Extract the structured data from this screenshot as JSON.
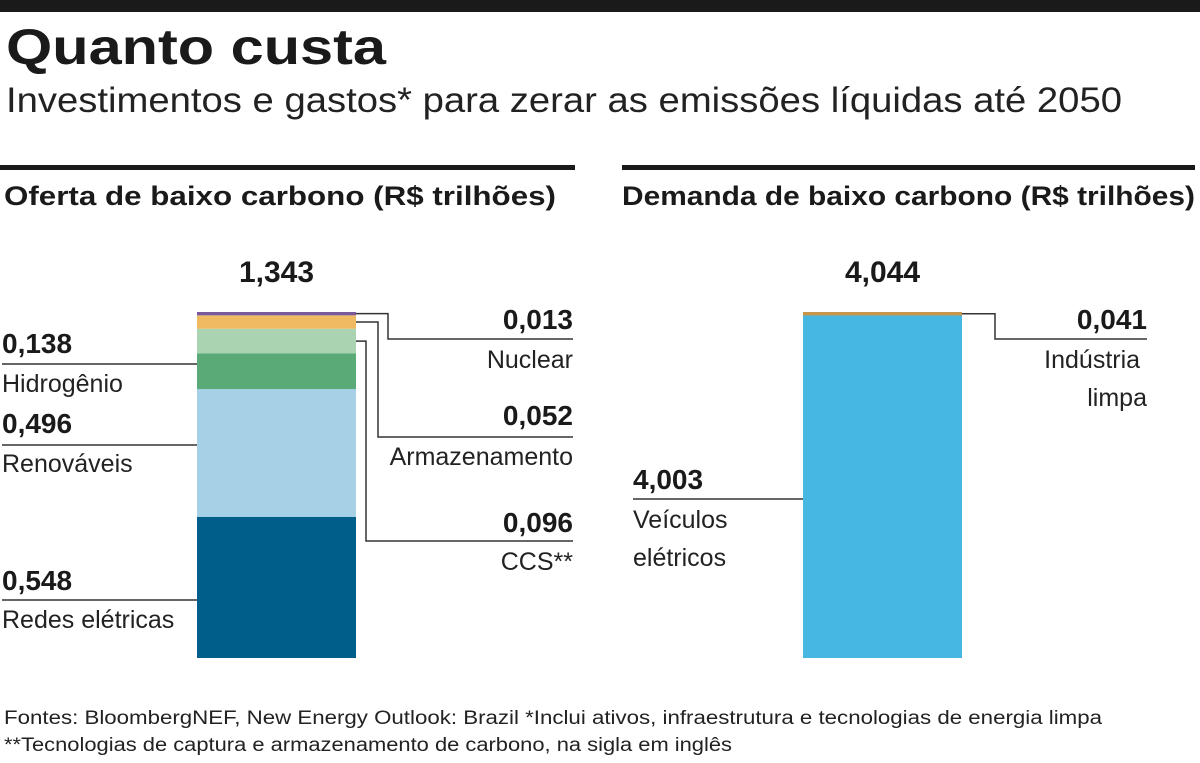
{
  "page": {
    "title": "Quanto custa",
    "subtitle": "Investimentos e gastos* para zerar as emissões líquidas até 2050",
    "notes": [
      "Fontes: BloombergNEF, New Energy Outlook: Brazil  *Inclui ativos, infraestrutura e tecnologias de energia limpa",
      "**Tecnologias de captura e armazenamento de carbono, na sigla em inglês"
    ]
  },
  "chart_data": [
    {
      "type": "stacked_bar",
      "title": "Oferta de baixo carbono (R$ trilhões)",
      "total": {
        "value": 1.343,
        "label": "1,343"
      },
      "series": [
        {
          "name": "Redes elétricas",
          "color": "#005f8a",
          "values": [
            0.548
          ],
          "value_labels": [
            "0,548"
          ]
        },
        {
          "name": "Renováveis",
          "color": "#a6d0e6",
          "values": [
            0.496
          ],
          "value_labels": [
            "0,496"
          ]
        },
        {
          "name": "Hidrogênio",
          "color": "#5aaa78",
          "values": [
            0.138
          ],
          "value_labels": [
            "0,138"
          ]
        },
        {
          "name": "CCS**",
          "color": "#a9d3b1",
          "values": [
            0.096
          ],
          "value_labels": [
            "0,096"
          ]
        },
        {
          "name": "Armazenamento",
          "color": "#f0ba62",
          "values": [
            0.052
          ],
          "value_labels": [
            "0,052"
          ]
        },
        {
          "name": "Nuclear",
          "color": "#7a5a9a",
          "values": [
            0.013
          ],
          "value_labels": [
            "0,013"
          ]
        }
      ]
    },
    {
      "type": "stacked_bar",
      "title": "Demanda de baixo carbono (R$ trilhões)",
      "total": {
        "value": 4.044,
        "label": "4,044"
      },
      "series": [
        {
          "name": "Veículos elétricos",
          "color": "#45b7e0",
          "values": [
            4.003
          ],
          "value_labels": [
            "4,003"
          ]
        },
        {
          "name": "Indústria limpa",
          "color": "#c8964a",
          "values": [
            0.041
          ],
          "value_labels": [
            "0,041"
          ]
        }
      ]
    }
  ]
}
